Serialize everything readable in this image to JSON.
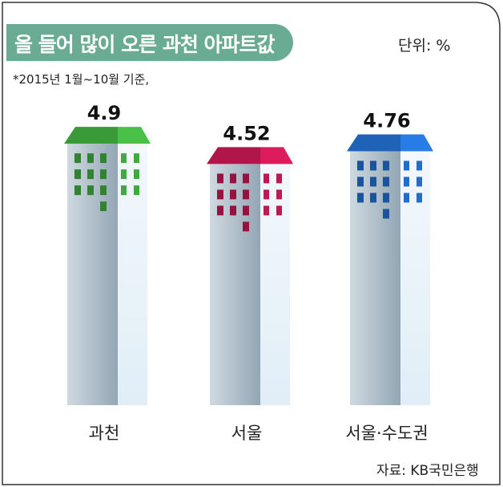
{
  "title": "올 들어 많이 오른 과천 아파트값",
  "unit": "단위: %",
  "footnote": "*2015년 1월~10월 기준,",
  "source": "자료: KB국민은행",
  "colors": {
    "title_bg": "#6aab93",
    "gwacheon_roof": "#3a9a3a",
    "seoul_roof": "#b0164a",
    "capital_roof": "#1f63b8"
  },
  "chart_data": {
    "type": "bar",
    "title": "올 들어 많이 오른 과천 아파트값",
    "ylabel": "단위: %",
    "categories": [
      "과천",
      "서울",
      "서울·수도권"
    ],
    "values": [
      4.9,
      4.52,
      4.76
    ],
    "value_labels": [
      "4.9",
      "4.52",
      "4.76"
    ]
  }
}
